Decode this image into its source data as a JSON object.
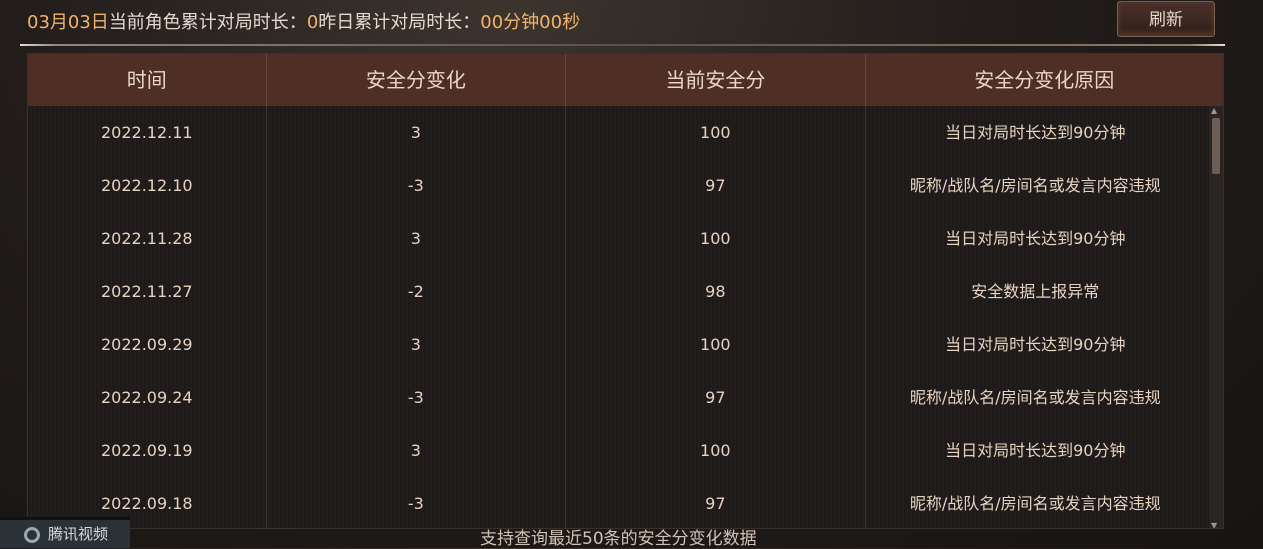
{
  "header": {
    "date": "03月03日",
    "current_label": "当前角色累计对局时长：",
    "current_value": "0",
    "yesterday_label": "昨日累计对局时长：",
    "yesterday_value": "00分钟00秒",
    "refresh_label": "刷新"
  },
  "table": {
    "columns": [
      "时间",
      "安全分变化",
      "当前安全分",
      "安全分变化原因"
    ],
    "rows": [
      [
        "2022.12.11",
        "3",
        "100",
        "当日对局时长达到90分钟"
      ],
      [
        "2022.12.10",
        "-3",
        "97",
        "昵称/战队名/房间名或发言内容违规"
      ],
      [
        "2022.11.28",
        "3",
        "100",
        "当日对局时长达到90分钟"
      ],
      [
        "2022.11.27",
        "-2",
        "98",
        "安全数据上报异常"
      ],
      [
        "2022.09.29",
        "3",
        "100",
        "当日对局时长达到90分钟"
      ],
      [
        "2022.09.24",
        "-3",
        "97",
        "昵称/战队名/房间名或发言内容违规"
      ],
      [
        "2022.09.19",
        "3",
        "100",
        "当日对局时长达到90分钟"
      ],
      [
        "2022.09.18",
        "-3",
        "97",
        "昵称/战队名/房间名或发言内容违规"
      ]
    ]
  },
  "footer": {
    "note": "支持查询最近50条的安全分变化数据"
  },
  "watermark": {
    "text": "腾讯视频"
  },
  "colors": {
    "accent": "#f0b36b",
    "header_bg": "#4f2f25"
  }
}
